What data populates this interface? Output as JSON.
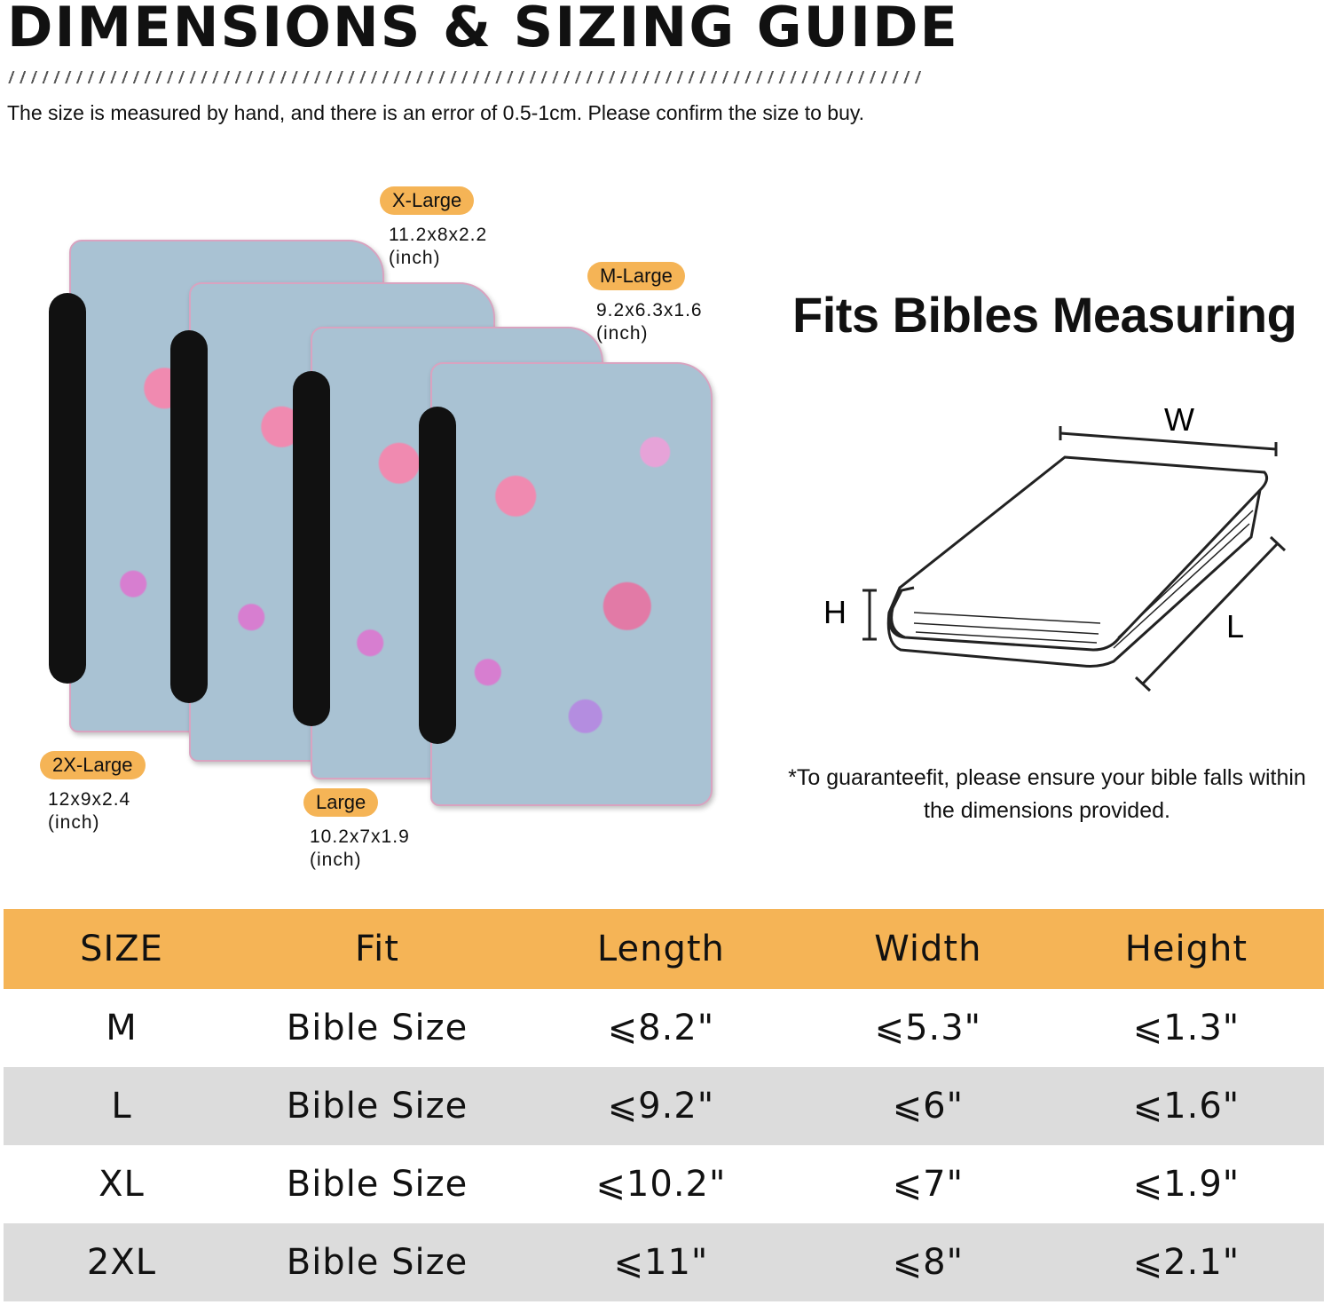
{
  "header": {
    "title": "DIMENSIONS & SIZING GUIDE",
    "note": "The size is measured by hand, and there is an error of 0.5-1cm. Please confirm the size to buy."
  },
  "sizes": [
    {
      "label": "X-Large",
      "dims": "11.2x8x2.2",
      "unit": "(inch)"
    },
    {
      "label": "M-Large",
      "dims": "9.2x6.3x1.6",
      "unit": "(inch)"
    },
    {
      "label": "2X-Large",
      "dims": "12x9x2.4",
      "unit": "(inch)"
    },
    {
      "label": "Large",
      "dims": "10.2x7x1.9",
      "unit": "(inch)"
    }
  ],
  "diagram": {
    "title": "Fits Bibles Measuring",
    "w_label": "W",
    "h_label": "H",
    "l_label": "L",
    "disclaimer": "*To guaranteefit, please ensure your bible falls within the dimensions provided."
  },
  "table": {
    "headers": [
      "SIZE",
      "Fit",
      "Length",
      "Width",
      "Height"
    ],
    "rows": [
      [
        "M",
        "Bible Size",
        "⩽8.2\"",
        "⩽5.3\"",
        "⩽1.3\""
      ],
      [
        "L",
        "Bible Size",
        "⩽9.2\"",
        "⩽6\"",
        "⩽1.6\""
      ],
      [
        "XL",
        "Bible Size",
        "⩽10.2\"",
        "⩽7\"",
        "⩽1.9\""
      ],
      [
        "2XL",
        "Bible Size",
        "⩽11\"",
        "⩽8\"",
        "⩽2.1\""
      ]
    ]
  },
  "colors": {
    "accent": "#f5b456",
    "row_alt": "#dcdcdc",
    "cover": "#a9c2d3"
  }
}
